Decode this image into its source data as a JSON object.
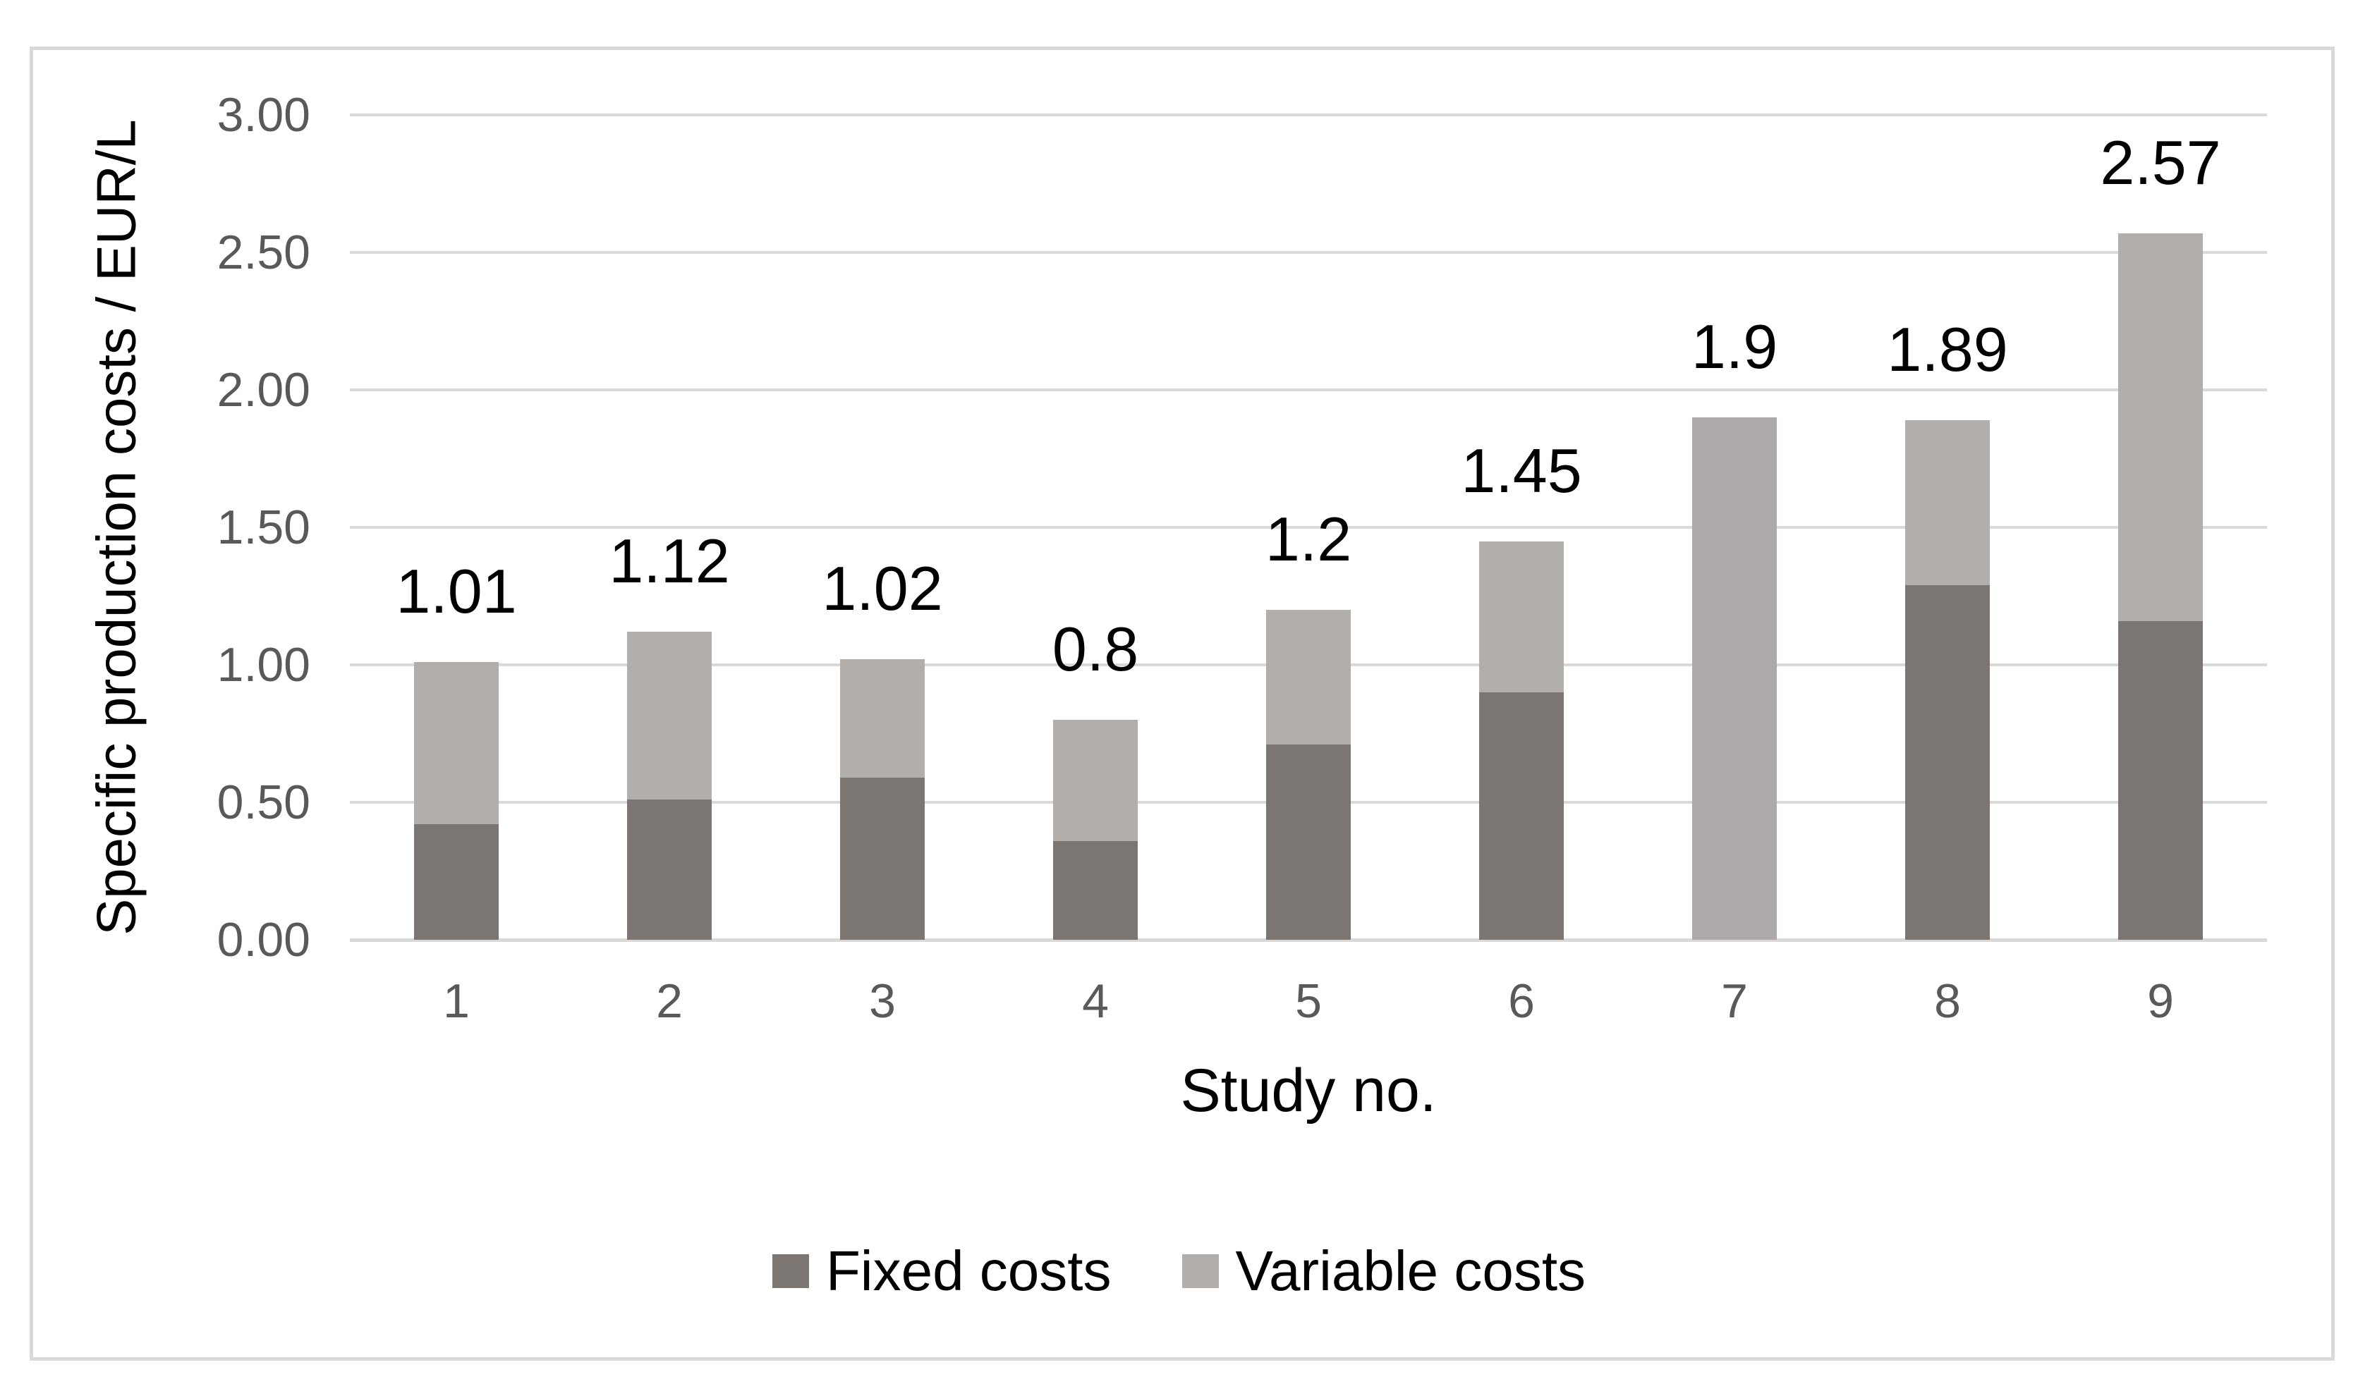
{
  "figure": {
    "background_color": "#FFFFFF",
    "border_color": "#D9D9D9",
    "gridline_color": "#D9D9D9",
    "axis_line_color": "#D9D9D9",
    "tick_label_color": "#595959",
    "text_color": "#000000"
  },
  "chart_data": {
    "type": "bar",
    "stacked": true,
    "title": "",
    "xlabel": "Study no.",
    "ylabel": "Specific production costs / EUR/L",
    "categories": [
      "1",
      "2",
      "3",
      "4",
      "5",
      "6",
      "7",
      "8",
      "9"
    ],
    "series": [
      {
        "name": "Fixed costs",
        "color": "#7C7673",
        "values": [
          0.42,
          0.51,
          0.59,
          0.36,
          0.71,
          0.9,
          0.0,
          1.29,
          1.16
        ]
      },
      {
        "name": "Variable costs",
        "color": "#B2AEAB",
        "values": [
          0.59,
          0.61,
          0.43,
          0.44,
          0.49,
          0.55,
          1.9,
          0.6,
          1.41
        ]
      }
    ],
    "bar_color_overrides": [
      {
        "category": "7",
        "series": "Variable costs",
        "color": "#ACA9A8"
      }
    ],
    "totals": [
      1.01,
      1.12,
      1.02,
      0.8,
      1.2,
      1.45,
      1.9,
      1.89,
      2.57
    ],
    "total_labels": [
      "1.01",
      "1.12",
      "1.02",
      "0.8",
      "1.2",
      "1.45",
      "1.9",
      "1.89",
      "2.57"
    ],
    "ylim": [
      0,
      3
    ],
    "y_ticks": [
      {
        "value": 0.0,
        "label": "0.00"
      },
      {
        "value": 0.5,
        "label": "0.50"
      },
      {
        "value": 1.0,
        "label": "1.00"
      },
      {
        "value": 1.5,
        "label": "1.50"
      },
      {
        "value": 2.0,
        "label": "2.00"
      },
      {
        "value": 2.5,
        "label": "2.50"
      },
      {
        "value": 3.0,
        "label": "3.00"
      }
    ],
    "grid": true,
    "legend_position": "bottom"
  }
}
